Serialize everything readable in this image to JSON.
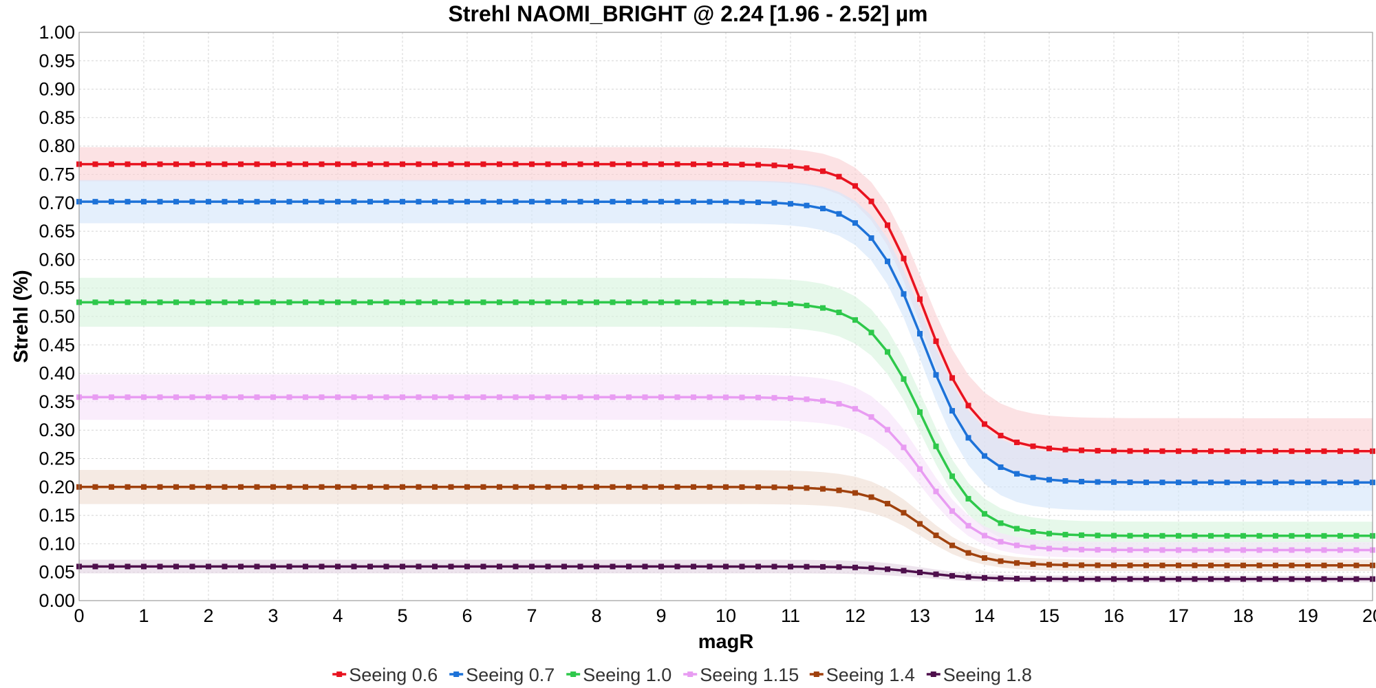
{
  "chart_data": {
    "type": "line",
    "title": "Strehl NAOMI_BRIGHT @ 2.24 [1.96 - 2.52] µm",
    "xlabel": "magR",
    "ylabel": "Strehl (%)",
    "xlim": [
      0,
      20
    ],
    "ylim": [
      0,
      1
    ],
    "xticks": [
      "0",
      "1",
      "2",
      "3",
      "4",
      "5",
      "6",
      "7",
      "8",
      "9",
      "10",
      "11",
      "12",
      "13",
      "14",
      "15",
      "16",
      "17",
      "18",
      "19",
      "20"
    ],
    "yticks": [
      "0.00",
      "0.05",
      "0.10",
      "0.15",
      "0.20",
      "0.25",
      "0.30",
      "0.35",
      "0.40",
      "0.45",
      "0.50",
      "0.55",
      "0.60",
      "0.65",
      "0.70",
      "0.75",
      "0.80",
      "0.85",
      "0.90",
      "0.95",
      "1.00"
    ],
    "grid": true,
    "legend_position": "bottom",
    "marker": "square",
    "x_step": 0.25,
    "series": [
      {
        "name": "Seeing 0.6",
        "color": "#e8131f",
        "band_color": "#fbd3d6",
        "high": 0.768,
        "low": 0.263,
        "band_high": 0.03,
        "band_low": 0.058
      },
      {
        "name": "Seeing 0.7",
        "color": "#1d72d8",
        "band_color": "#d6e7fa",
        "high": 0.702,
        "low": 0.208,
        "band_high": 0.038,
        "band_low": 0.05
      },
      {
        "name": "Seeing 1.0",
        "color": "#2ec84b",
        "band_color": "#d9f4df",
        "high": 0.525,
        "low": 0.114,
        "band_high": 0.043,
        "band_low": 0.025
      },
      {
        "name": "Seeing 1.15",
        "color": "#e89cf2",
        "band_color": "#f8e4fb",
        "high": 0.358,
        "low": 0.089,
        "band_high": 0.04,
        "band_low": 0.014
      },
      {
        "name": "Seeing 1.4",
        "color": "#a0410d",
        "band_color": "#efdfd4",
        "high": 0.2,
        "low": 0.062,
        "band_high": 0.03,
        "band_low": 0.01
      },
      {
        "name": "Seeing 1.8",
        "color": "#4e0f4c",
        "band_color": "#e3d6e4",
        "high": 0.06,
        "low": 0.038,
        "band_high": 0.012,
        "band_low": 0.006
      }
    ]
  }
}
